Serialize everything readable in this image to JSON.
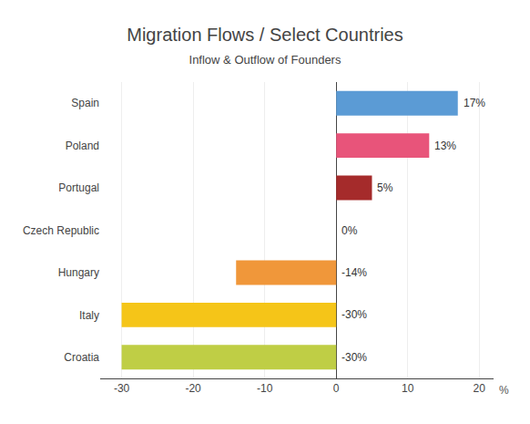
{
  "chart_data": {
    "type": "bar",
    "orientation": "horizontal",
    "title": "Migration Flows / Select Countries",
    "subtitle": "Inflow & Outflow of Founders",
    "xlabel": "%",
    "categories": [
      "Spain",
      "Poland",
      "Portugal",
      "Czech Republic",
      "Hungary",
      "Italy",
      "Croatia"
    ],
    "values": [
      17,
      13,
      5,
      0,
      -14,
      -30,
      -30
    ],
    "value_labels": [
      "17%",
      "13%",
      "5%",
      "0%",
      "-14%",
      "-30%",
      "-30%"
    ],
    "data_labels": true,
    "colors": [
      "#5B9BD5",
      "#E8547A",
      "#A52B2B",
      "#5B9BD5",
      "#F0973A",
      "#F5C518",
      "#BFCE45"
    ],
    "xlim": [
      -33,
      22
    ],
    "xticks": [
      -30,
      -20,
      -10,
      0,
      10,
      20
    ],
    "grid": true
  }
}
